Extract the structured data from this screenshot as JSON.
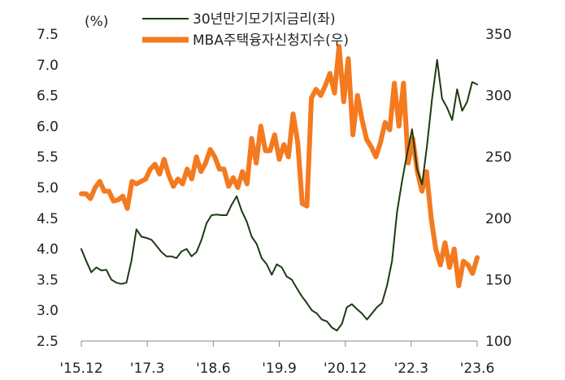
{
  "chart_data": {
    "type": "line",
    "unit_label": "(%)",
    "x_ticks": [
      "'15.12",
      "'17.3",
      "'18.6",
      "'19.9",
      "'20.12",
      "'22.3",
      "'23.6"
    ],
    "y_left": {
      "ylim": [
        2.5,
        7.5
      ],
      "ticks": [
        "7.5",
        "7.0",
        "6.5",
        "6.0",
        "5.5",
        "5.0",
        "4.5",
        "4.0",
        "3.5",
        "3.0",
        "2.5"
      ]
    },
    "y_right": {
      "ylim": [
        100,
        350
      ],
      "ticks": [
        "350",
        "300",
        "250",
        "200",
        "150",
        "100"
      ]
    },
    "legend_position": "top-center",
    "grid": false,
    "series": [
      {
        "name": "30년만기모기지금리(좌)",
        "axis": "left",
        "color": "#1c3a12",
        "values": [
          4.0,
          3.8,
          3.62,
          3.7,
          3.65,
          3.66,
          3.5,
          3.45,
          3.43,
          3.45,
          3.8,
          4.32,
          4.2,
          4.18,
          4.15,
          4.05,
          3.95,
          3.88,
          3.88,
          3.85,
          3.96,
          4.0,
          3.88,
          3.95,
          4.15,
          4.42,
          4.55,
          4.56,
          4.55,
          4.55,
          4.72,
          4.86,
          4.62,
          4.45,
          4.2,
          4.08,
          3.85,
          3.75,
          3.58,
          3.75,
          3.7,
          3.55,
          3.5,
          3.36,
          3.23,
          3.12,
          3.0,
          2.95,
          2.85,
          2.82,
          2.72,
          2.67,
          2.78,
          3.05,
          3.1,
          3.02,
          2.95,
          2.85,
          2.95,
          3.05,
          3.12,
          3.4,
          3.8,
          4.6,
          5.1,
          5.55,
          5.95,
          5.3,
          5.05,
          5.7,
          6.45,
          7.08,
          6.45,
          6.3,
          6.1,
          6.6,
          6.25,
          6.4,
          6.72,
          6.68
        ]
      },
      {
        "name": "MBA주택융자신청지수(우)",
        "axis": "right",
        "color": "#f47a20",
        "values": [
          220,
          220,
          216,
          225,
          230,
          222,
          222,
          214,
          215,
          218,
          208,
          230,
          228,
          230,
          232,
          240,
          244,
          236,
          248,
          235,
          226,
          232,
          228,
          240,
          232,
          250,
          238,
          245,
          256,
          250,
          240,
          240,
          226,
          233,
          225,
          238,
          228,
          265,
          245,
          275,
          255,
          255,
          268,
          248,
          260,
          250,
          285,
          262,
          212,
          210,
          298,
          305,
          300,
          308,
          318,
          302,
          340,
          295,
          330,
          268,
          300,
          280,
          264,
          258,
          250,
          262,
          278,
          272,
          310,
          275,
          310,
          245,
          265,
          238,
          222,
          238,
          200,
          175,
          162,
          180,
          160,
          175,
          145,
          165,
          162,
          155,
          168
        ]
      }
    ]
  }
}
